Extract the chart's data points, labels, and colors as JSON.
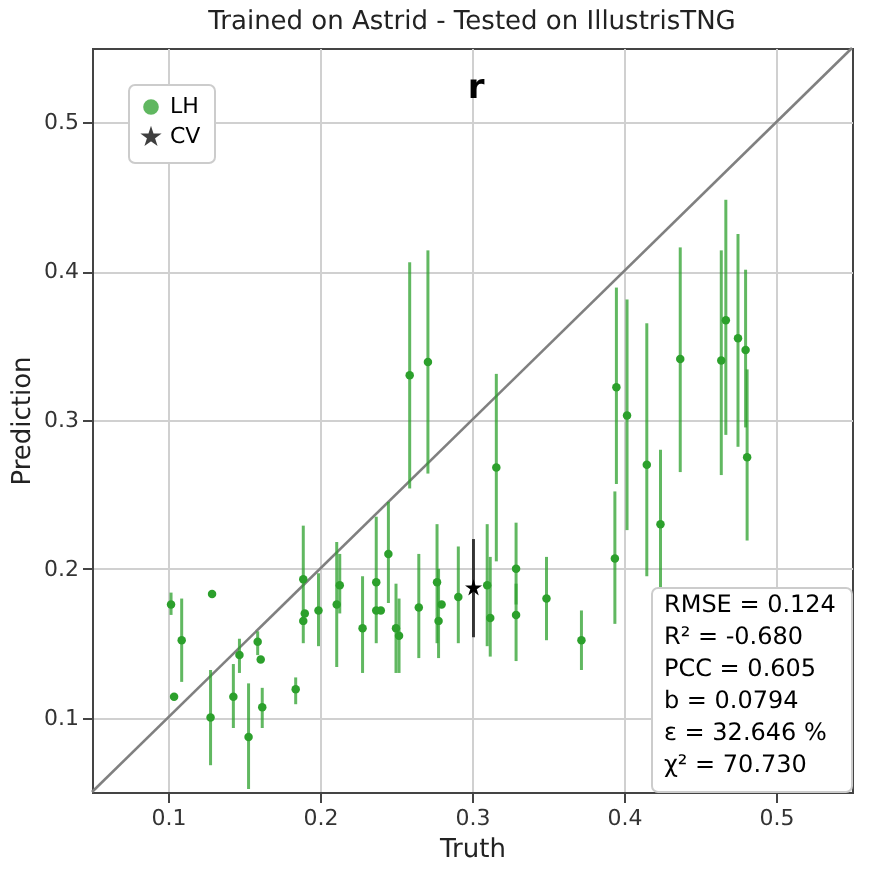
{
  "chart_data": {
    "type": "scatter",
    "title": "Trained on Astrid - Tested on IllustrisTNG",
    "xlabel": "Truth",
    "ylabel": "Prediction",
    "xlim": [
      0.05,
      0.55
    ],
    "ylim": [
      0.05,
      0.55
    ],
    "xticks": [
      0.1,
      0.2,
      0.3,
      0.4,
      0.5
    ],
    "yticks": [
      0.1,
      0.2,
      0.3,
      0.4,
      0.5
    ],
    "grid": true,
    "legend": "top left",
    "series": [
      {
        "type": "line",
        "color": "#808080",
        "x": [
          0.05,
          0.55
        ],
        "values": [
          0.05,
          0.55
        ]
      },
      {
        "name": "LH",
        "color": "#2ca02c",
        "marker": "circle",
        "x": [
          0.102,
          0.109,
          0.104,
          0.129,
          0.128,
          0.143,
          0.147,
          0.153,
          0.159,
          0.161,
          0.162,
          0.184,
          0.189,
          0.189,
          0.19,
          0.199,
          0.211,
          0.213,
          0.228,
          0.237,
          0.237,
          0.24,
          0.245,
          0.25,
          0.252,
          0.265,
          0.277,
          0.278,
          0.28,
          0.291,
          0.31,
          0.312,
          0.329,
          0.329,
          0.349,
          0.372,
          0.259,
          0.271,
          0.316,
          0.395,
          0.394,
          0.402,
          0.415,
          0.424,
          0.437,
          0.464,
          0.467,
          0.475,
          0.48,
          0.481
        ],
        "values": [
          0.176,
          0.152,
          0.114,
          0.183,
          0.1,
          0.114,
          0.142,
          0.087,
          0.151,
          0.139,
          0.107,
          0.119,
          0.193,
          0.165,
          0.17,
          0.172,
          0.176,
          0.189,
          0.16,
          0.191,
          0.172,
          0.172,
          0.21,
          0.16,
          0.155,
          0.174,
          0.191,
          0.165,
          0.176,
          0.181,
          0.189,
          0.167,
          0.2,
          0.169,
          0.18,
          0.152,
          0.33,
          0.339,
          0.268,
          0.322,
          0.207,
          0.303,
          0.27,
          0.23,
          0.341,
          0.34,
          0.367,
          0.355,
          0.347,
          0.275
        ],
        "errors": [
          [
            0.169,
            0.184
          ],
          [
            0.124,
            0.18
          ],
          null,
          null,
          [
            0.068,
            0.132
          ],
          [
            0.093,
            0.136
          ],
          [
            0.13,
            0.153
          ],
          [
            0.052,
            0.123
          ],
          [
            0.142,
            0.158
          ],
          null,
          [
            0.093,
            0.12
          ],
          [
            0.109,
            0.127
          ],
          [
            0.15,
            0.229
          ],
          null,
          null,
          [
            0.148,
            0.197
          ],
          [
            0.134,
            0.218
          ],
          [
            0.17,
            0.21
          ],
          [
            0.13,
            0.195
          ],
          [
            0.15,
            0.235
          ],
          null,
          null,
          [
            0.177,
            0.245
          ],
          [
            0.13,
            0.19
          ],
          [
            0.13,
            0.18
          ],
          [
            0.14,
            0.21
          ],
          [
            0.15,
            0.23
          ],
          [
            0.14,
            0.2
          ],
          null,
          [
            0.15,
            0.215
          ],
          [
            0.148,
            0.23
          ],
          [
            0.141,
            0.208
          ],
          [
            0.176,
            0.231
          ],
          [
            0.138,
            0.19
          ],
          [
            0.152,
            0.208
          ],
          [
            0.132,
            0.172
          ],
          [
            0.254,
            0.406
          ],
          [
            0.264,
            0.414
          ],
          [
            0.205,
            0.331
          ],
          [
            0.257,
            0.389
          ],
          [
            0.163,
            0.252
          ],
          [
            0.226,
            0.381
          ],
          [
            0.195,
            0.365
          ],
          [
            0.185,
            0.28
          ],
          [
            0.265,
            0.416
          ],
          [
            0.263,
            0.414
          ],
          [
            0.29,
            0.448
          ],
          [
            0.282,
            0.425
          ],
          [
            0.295,
            0.401
          ],
          [
            0.219,
            0.334
          ]
        ]
      },
      {
        "name": "CV",
        "color": "#000000",
        "marker": "star",
        "x": [
          0.301
        ],
        "values": [
          0.187
        ],
        "errors": [
          [
            0.154,
            0.22
          ]
        ]
      }
    ],
    "annotations": [
      "r",
      "RMSE = 0.124",
      "R² = -0.680",
      "PCC = 0.605",
      "b = 0.0794",
      "ε = 32.646 %",
      "χ² = 70.730"
    ]
  }
}
